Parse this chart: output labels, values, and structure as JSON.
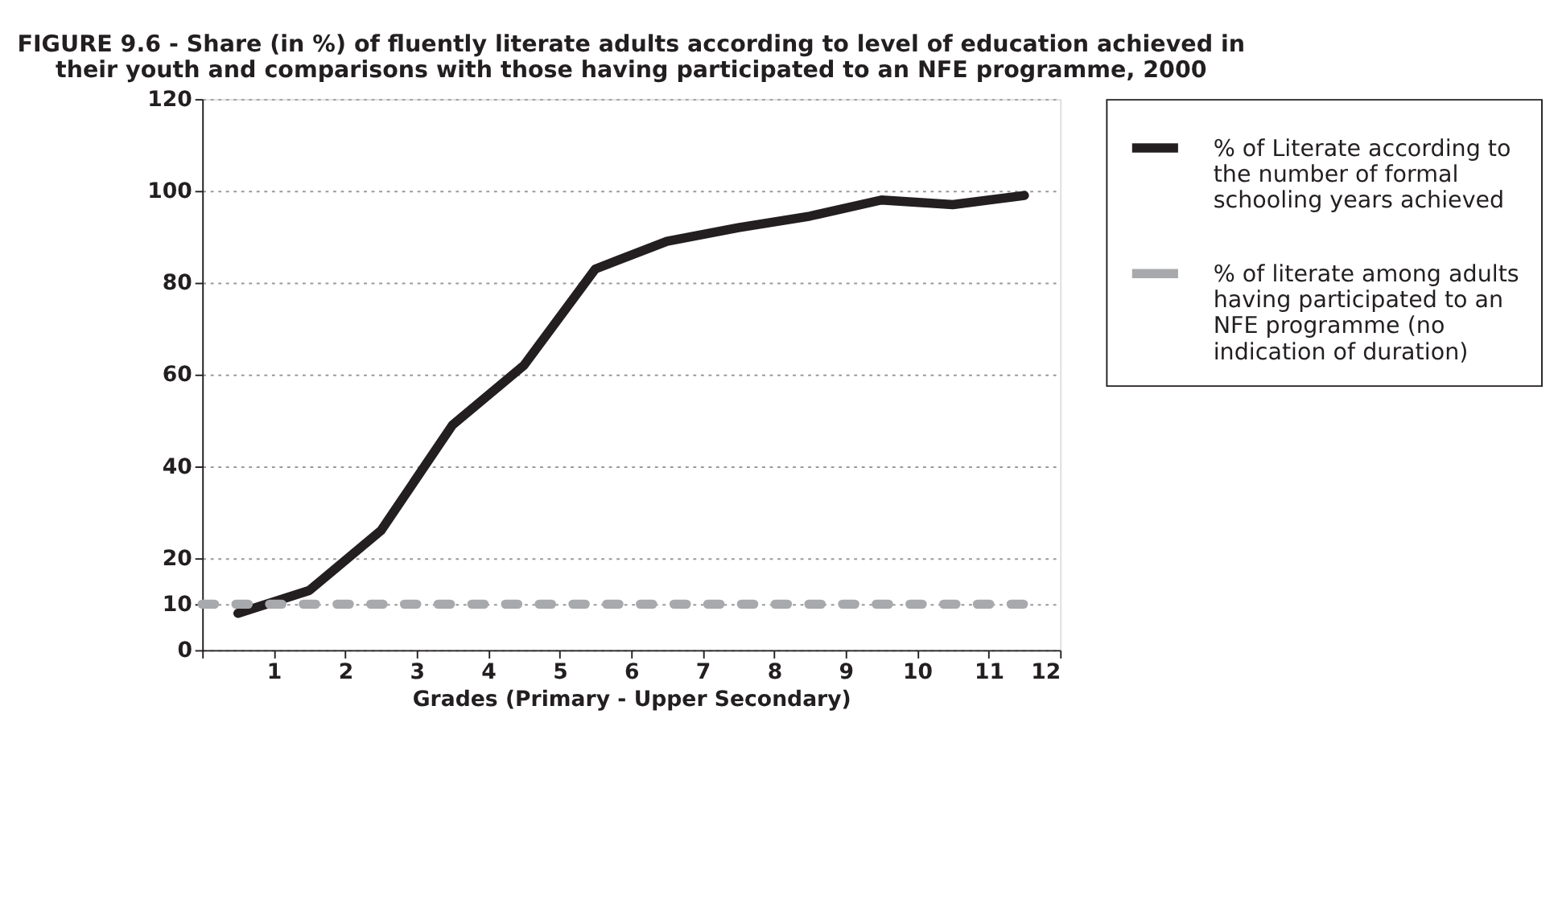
{
  "chart_data": {
    "type": "line",
    "title": "FIGURE 9.6 - Share (in %) of fluently literate adults according to level of education achieved in their youth and comparisons with those having participated to an NFE programme, 2000",
    "xlabel": "Grades (Primary - Upper Secondary)",
    "x": [
      0.5,
      1.5,
      2.5,
      3.5,
      4.5,
      5.5,
      6.5,
      7.5,
      8.5,
      9.5,
      10.5,
      11.5
    ],
    "series": [
      {
        "name": "% of Literate according to the number of formal schooling years achieved",
        "color": "#231f20",
        "line_style": "solid",
        "values": [
          8,
          13,
          26,
          49,
          62,
          83,
          89,
          92,
          94.5,
          98,
          97,
          99
        ]
      },
      {
        "name": "% of literate among adults having participated to an NFE programme (no indication of duration)",
        "color": "#a7a9ac",
        "line_style": "dashed",
        "x": [
          0,
          11.5
        ],
        "values": [
          10,
          10
        ]
      }
    ],
    "xlim": [
      0,
      12
    ],
    "xticks": [
      {
        "value": 0,
        "label": null
      },
      1,
      2,
      3,
      4,
      5,
      6,
      7,
      8,
      9,
      10,
      11,
      12
    ],
    "ylim": [
      0,
      120
    ],
    "yticks": [
      0,
      10,
      20,
      40,
      60,
      80,
      100,
      120
    ],
    "grid": "y",
    "legend": "right",
    "marker": "none"
  }
}
